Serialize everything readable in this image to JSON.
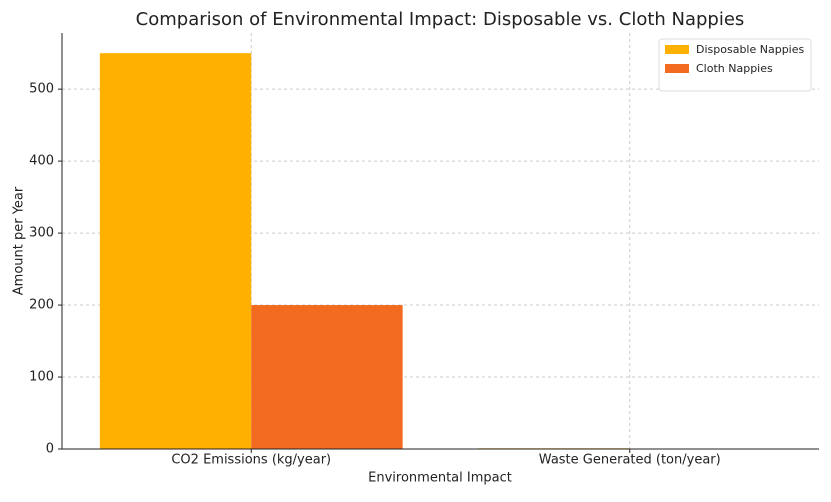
{
  "chart_data": {
    "type": "bar",
    "title": "Comparison of Environmental Impact: Disposable vs. Cloth Nappies",
    "x_label": "Environmental Impact",
    "y_label": "Amount per Year",
    "categories": [
      "CO2 Emissions (kg/year)",
      "Waste Generated (ton/year)"
    ],
    "series": [
      {
        "name": "Disposable Nappies",
        "color": "#ffb000",
        "values": [
          550,
          1
        ]
      },
      {
        "name": "Cloth Nappies",
        "color": "#f26b21",
        "values": [
          200,
          0.5
        ]
      }
    ],
    "ylim": [
      0,
      578
    ],
    "yticks": [
      0,
      100,
      200,
      300,
      400,
      500
    ],
    "grid": true,
    "legend": "upper right"
  }
}
